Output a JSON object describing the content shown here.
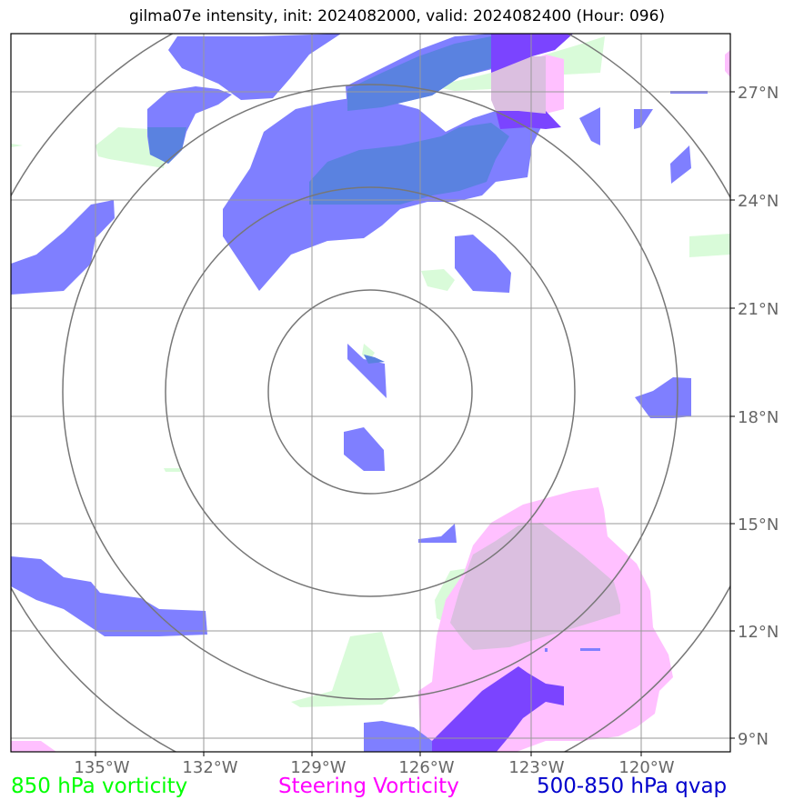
{
  "title": "gilma07e intensity, init: 2024082000, valid: 2024082400 (Hour: 096)",
  "map": {
    "lon_ticks": [
      "135°W",
      "132°W",
      "129°W",
      "126°W",
      "123°W",
      "120°W"
    ],
    "lat_ticks": [
      "27°N",
      "24°N",
      "21°N",
      "18°N",
      "15°N",
      "12°N",
      "9°N"
    ],
    "range_rings": 4
  },
  "legend": [
    {
      "label": "850 hPa vorticity",
      "color": "#00ff00"
    },
    {
      "label": "Steering Vorticity",
      "color": "#ff00ff"
    },
    {
      "label": "500-850 hPa qvap",
      "color": "#0000cc"
    }
  ],
  "colors": {
    "vorticity_850": "#d9fbd9",
    "steering_vorticity": "#ffc0ff",
    "qvap_light": "#7f7fff",
    "qvap_dark": "#5a82e0",
    "qvap_core": "#7b44ff",
    "overlap": "#dbbfe0"
  }
}
